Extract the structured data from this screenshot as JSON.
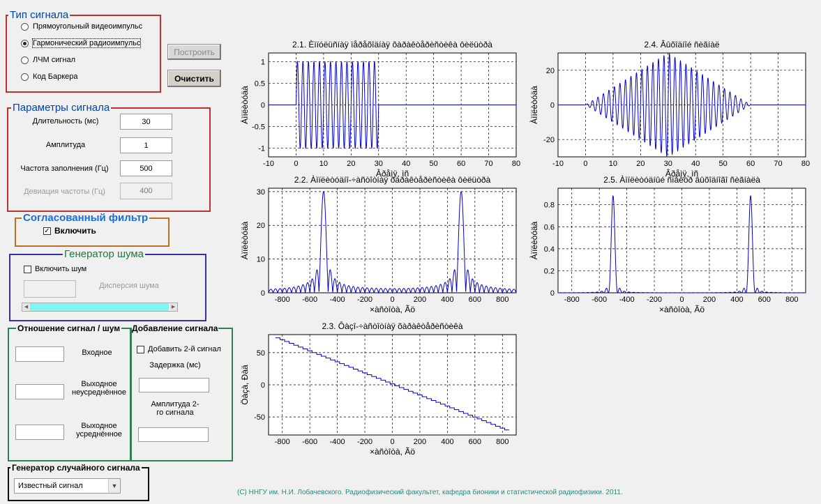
{
  "signal_type": {
    "title": "Тип сигнала",
    "options": [
      "Прямоугольный видеоимпульс",
      "Гармонический радиоимпульс",
      "ЛЧМ сигнал",
      "Код Баркера"
    ],
    "selected_index": 1
  },
  "buttons": {
    "build": "Построить",
    "clear": "Очистить"
  },
  "params": {
    "title": "Параметры сигнала",
    "duration_label": "Длительность (мс)",
    "duration_value": "30",
    "amplitude_label": "Амплитуда",
    "amplitude_value": "1",
    "freq_label": "Частота заполнения (Гц)",
    "freq_value": "500",
    "deviation_label": "Девиация частоты (Гц)",
    "deviation_value": "400"
  },
  "filter": {
    "title": "Согласованный фильтр",
    "enable_label": "Включить",
    "enabled": true
  },
  "noise": {
    "title": "Генератор шума",
    "enable_label": "Включить шум",
    "enabled": false,
    "variance_label": "Дисперсия шума",
    "variance_value": ""
  },
  "snr": {
    "title": "Отношение сигнал / шум",
    "input_label": "Входное",
    "output_raw_label": "Выходное неусреднённое",
    "output_avg_label": "Выходное усреднённое"
  },
  "add_signal": {
    "title": "Добавление сигнала",
    "enable_label": "Добавить 2-й сигнал",
    "delay_label": "Задержка (мс)",
    "amp2_label": "Амплитуда 2-го сигнала"
  },
  "random_gen": {
    "title": "Генератор случайного сигнала",
    "selected": "Известный сигнал"
  },
  "footer": "(С) ННГУ им. Н.И. Лобачевского. Радиофизический факультет, кафедра бионики и статистической радиофизики. 2011.",
  "colors": {
    "plot_line": "#0000cc",
    "legend_blue": "#0044aa",
    "legend_red_border": "#c03030",
    "legend_orange_border": "#c07020",
    "legend_green": "#1f7a3a",
    "slider_fill": "#7ff5f5"
  },
  "chart_data": [
    {
      "id": "p21",
      "type": "line",
      "title": "2.1. Èìïóëüñíàÿ ïåðåõîäíàÿ õàðàêòåðèñòèêà ôèëüòðà",
      "xlabel": "Âðåìÿ, ìñ",
      "ylabel": "Àìïëèòóäà",
      "xlim": [
        -10,
        80
      ],
      "ylim": [
        -1.2,
        1.2
      ],
      "xticks": [
        -10,
        0,
        10,
        20,
        30,
        40,
        50,
        60,
        70,
        80
      ],
      "yticks": [
        -1,
        -0.5,
        0,
        0.5,
        1
      ],
      "series": [
        {
          "kind": "gated_sine",
          "amplitude": 1,
          "freq_hz": 500,
          "t_start_ms": 0,
          "t_end_ms": 30
        }
      ]
    },
    {
      "id": "p24",
      "type": "line",
      "title": "2.4. Âûõîäíîé ñèãíàë",
      "xlabel": "Âðåìÿ, ìñ",
      "ylabel": "Àìïëèòóäà",
      "xlim": [
        -10,
        80
      ],
      "ylim": [
        -30,
        30
      ],
      "xticks": [
        -10,
        0,
        10,
        20,
        30,
        40,
        50,
        60,
        70,
        80
      ],
      "yticks": [
        -20,
        0,
        20
      ],
      "series": [
        {
          "kind": "triangle_modulated_sine",
          "peak": 30,
          "freq_hz": 500,
          "t_start_ms": 0,
          "t_end_ms": 60
        }
      ]
    },
    {
      "id": "p22",
      "type": "line",
      "title": "2.2. Àìïëèòóäíî-÷àñòîòíàÿ õàðàêòåðèñòèêà ôèëüòðà",
      "xlabel": "×àñòîòà, Ãö",
      "ylabel": "Àìïëèòóäà",
      "xlim": [
        -900,
        900
      ],
      "ylim": [
        0,
        31
      ],
      "xticks": [
        -800,
        -600,
        -400,
        -200,
        0,
        200,
        400,
        600,
        800
      ],
      "yticks": [
        0,
        10,
        20,
        30
      ],
      "series": [
        {
          "kind": "sinc_pair",
          "peak": 30,
          "centers_hz": [
            -500,
            500
          ],
          "duration_ms": 30
        }
      ]
    },
    {
      "id": "p25",
      "type": "line",
      "title": "2.5. Àìïëèòóäíûé ñïåêòð âûõîäíîãî ñèãíàëà",
      "xlabel": "×àñòîòà, Ãö",
      "ylabel": "Àìïëèòóäà",
      "xlim": [
        -900,
        900
      ],
      "ylim": [
        0,
        0.95
      ],
      "xticks": [
        -800,
        -600,
        -400,
        -200,
        0,
        200,
        400,
        600,
        800
      ],
      "yticks": [
        0,
        0.2,
        0.4,
        0.6,
        0.8
      ],
      "series": [
        {
          "kind": "sinc2_pair",
          "peak": 0.88,
          "centers_hz": [
            -500,
            500
          ],
          "duration_ms": 30
        }
      ]
    },
    {
      "id": "p23",
      "type": "line",
      "title": "2.3. Ôàçî-÷àñòîòíàÿ õàðàêòåðèñòèêà",
      "xlabel": "×àñòîòà, Ãö",
      "ylabel": "Ôàçà, Ðàä",
      "xlim": [
        -900,
        900
      ],
      "ylim": [
        -78,
        78
      ],
      "xticks": [
        -800,
        -600,
        -400,
        -200,
        0,
        200,
        400,
        600,
        800
      ],
      "yticks": [
        -50,
        0,
        50
      ],
      "series": [
        {
          "kind": "staircase",
          "x_start": -850,
          "x_end": 850,
          "y_start": 73,
          "y_end": -73,
          "steps": 51
        }
      ]
    }
  ]
}
